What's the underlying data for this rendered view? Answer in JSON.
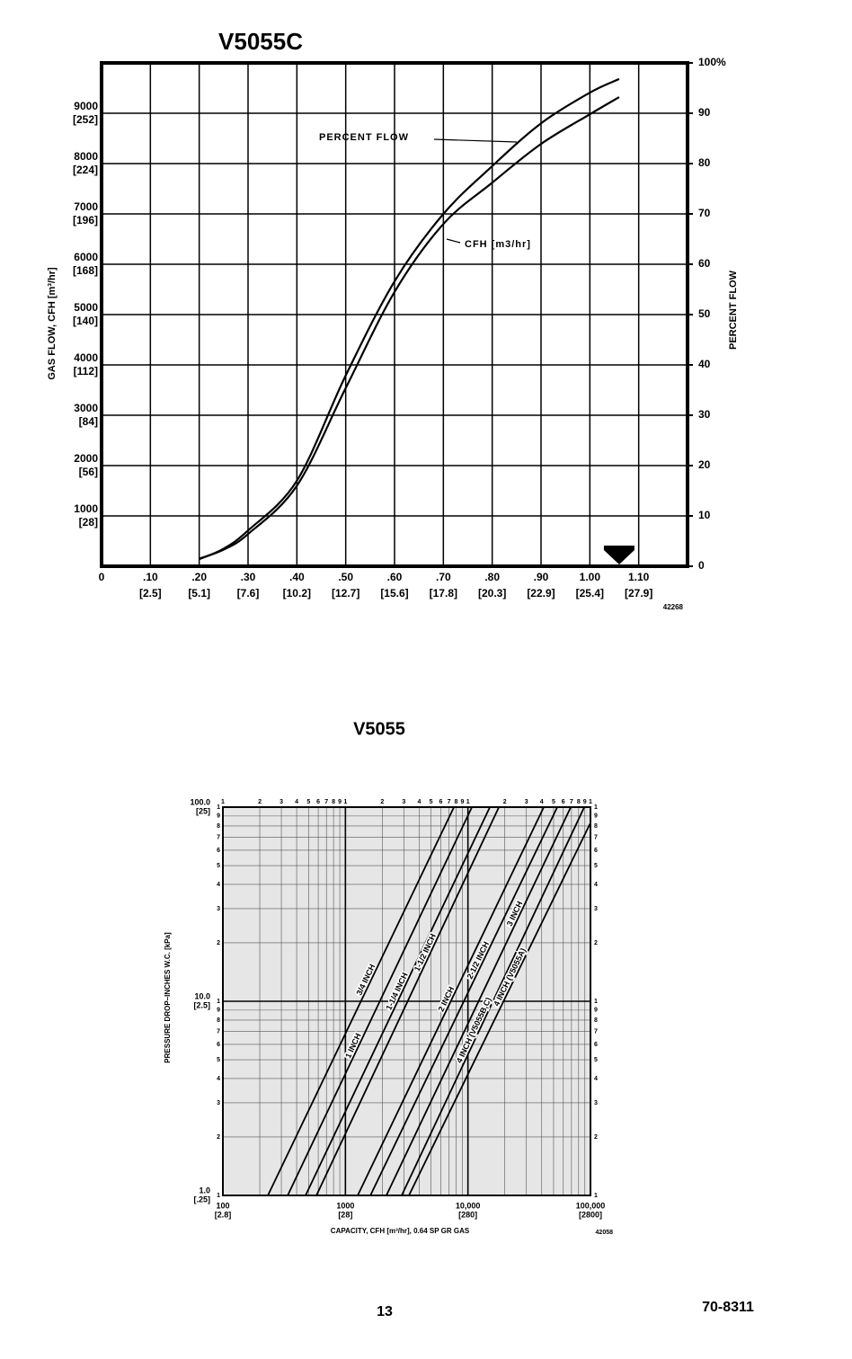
{
  "page_number": "13",
  "document_number": "70-8311",
  "chart_data": [
    {
      "type": "line",
      "title": "V5055C",
      "ylabel": "GAS FLOW, CFH [m³/hr]",
      "y2label": "PERCENT FLOW",
      "code": "42268",
      "xlim": [
        0,
        1.2
      ],
      "ylim": [
        0,
        10000
      ],
      "y2lim": [
        0,
        100
      ],
      "grid": true,
      "xticks": [
        0,
        {
          "value": 0.1,
          "label": ".10"
        },
        {
          "value": 0.2,
          "label": ".20"
        },
        {
          "value": 0.3,
          "label": ".30"
        },
        {
          "value": 0.4,
          "label": ".40"
        },
        {
          "value": 0.5,
          "label": ".50"
        },
        {
          "value": 0.6,
          "label": ".60"
        },
        {
          "value": 0.7,
          "label": ".70"
        },
        {
          "value": 0.8,
          "label": ".80"
        },
        {
          "value": 0.9,
          "label": ".90"
        },
        {
          "value": 1.0,
          "label": "1.00"
        },
        {
          "value": 1.1,
          "label": "1.10"
        }
      ],
      "x_metric_ticks": [
        {
          "value": 0.1,
          "label": "[2.5]"
        },
        {
          "value": 0.2,
          "label": "[5.1]"
        },
        {
          "value": 0.3,
          "label": "[7.6]"
        },
        {
          "value": 0.4,
          "label": "[10.2]"
        },
        {
          "value": 0.5,
          "label": "[12.7]"
        },
        {
          "value": 0.6,
          "label": "[15.6]"
        },
        {
          "value": 0.7,
          "label": "[17.8]"
        },
        {
          "value": 0.8,
          "label": "[20.3]"
        },
        {
          "value": 0.9,
          "label": "[22.9]"
        },
        {
          "value": 1.0,
          "label": "[25.4]"
        },
        {
          "value": 1.1,
          "label": "[27.9]"
        }
      ],
      "yticks": [
        1000,
        2000,
        3000,
        4000,
        5000,
        6000,
        7000,
        8000,
        9000
      ],
      "y_metric_ticks": [
        {
          "value": 1000,
          "label": "[28]"
        },
        {
          "value": 2000,
          "label": "[56]"
        },
        {
          "value": 3000,
          "label": "[84]"
        },
        {
          "value": 4000,
          "label": "[112]"
        },
        {
          "value": 5000,
          "label": "[140]"
        },
        {
          "value": 6000,
          "label": "[168]"
        },
        {
          "value": 7000,
          "label": "[196]"
        },
        {
          "value": 8000,
          "label": "[224]"
        },
        {
          "value": 9000,
          "label": "[252]"
        }
      ],
      "y2ticks": [
        0,
        10,
        20,
        30,
        40,
        50,
        60,
        70,
        80,
        90,
        {
          "value": 100,
          "label": "100%"
        }
      ],
      "marker_x": 1.06,
      "series": [
        {
          "name": "CFH [m3/hr]",
          "color": "#000000",
          "x": [
            0.2,
            0.25,
            0.3,
            0.4,
            0.5,
            0.6,
            0.7,
            0.8,
            0.9,
            1.0,
            1.06
          ],
          "values": [
            150,
            330,
            640,
            1600,
            3540,
            5450,
            6800,
            7620,
            8390,
            8980,
            9320
          ]
        },
        {
          "name": "PERCENT FLOW",
          "color": "#000000",
          "axis": "y2",
          "x": [
            0.2,
            0.25,
            0.3,
            0.4,
            0.5,
            0.6,
            0.7,
            0.8,
            0.9,
            1.0,
            1.06
          ],
          "values": [
            1.4,
            3.5,
            7.1,
            17,
            37.9,
            56.6,
            70,
            79.5,
            88,
            94.1,
            96.8
          ]
        }
      ]
    },
    {
      "type": "line",
      "title": "V5055",
      "xlabel": "CAPACITY, CFH [m³/hr], 0.64 SP GR GAS",
      "ylabel": "PRESSURE DROP–INCHES W.C. [kPa]",
      "code": "42058",
      "log_x": true,
      "log_y": true,
      "xlim": [
        100,
        100000
      ],
      "ylim": [
        1,
        100
      ],
      "grid": true,
      "xticks": [
        100,
        1000,
        {
          "value": 10000,
          "label": "10,000"
        },
        {
          "value": 100000,
          "label": "100,000"
        }
      ],
      "x_metric_ticks": [
        {
          "value": 100,
          "label": "[2.8]"
        },
        {
          "value": 1000,
          "label": "[28]"
        },
        {
          "value": 10000,
          "label": "[280]"
        },
        {
          "value": 100000,
          "label": "[2800]"
        }
      ],
      "yticks": [
        {
          "value": 1,
          "label": "1.0"
        },
        {
          "value": 10,
          "label": "10.0"
        },
        {
          "value": 100,
          "label": "100.0"
        }
      ],
      "y_metric_ticks": [
        {
          "value": 1,
          "label": "[.25]"
        },
        {
          "value": 10,
          "label": "[2.5]"
        },
        {
          "value": 100,
          "label": "[25]"
        }
      ],
      "x_minor_ticks": [
        {
          "value": 100,
          "label": "1"
        },
        {
          "value": 200,
          "label": "2"
        },
        {
          "value": 300,
          "label": "3"
        },
        {
          "value": 400,
          "label": "4"
        },
        {
          "value": 500,
          "label": "5"
        },
        {
          "value": 600,
          "label": "6"
        },
        {
          "value": 700,
          "label": "7"
        },
        {
          "value": 800,
          "label": "8"
        },
        {
          "value": 900,
          "label": "9"
        },
        {
          "value": 1000,
          "label": "1"
        },
        {
          "value": 2000,
          "label": "2"
        },
        {
          "value": 3000,
          "label": "3"
        },
        {
          "value": 4000,
          "label": "4"
        },
        {
          "value": 5000,
          "label": "5"
        },
        {
          "value": 6000,
          "label": "6"
        },
        {
          "value": 7000,
          "label": "7"
        },
        {
          "value": 8000,
          "label": "8"
        },
        {
          "value": 9000,
          "label": "9"
        },
        {
          "value": 10000,
          "label": "1"
        },
        {
          "value": 20000,
          "label": "2"
        },
        {
          "value": 30000,
          "label": "3"
        },
        {
          "value": 40000,
          "label": "4"
        },
        {
          "value": 50000,
          "label": "5"
        },
        {
          "value": 60000,
          "label": "6"
        },
        {
          "value": 70000,
          "label": "7"
        },
        {
          "value": 80000,
          "label": "8"
        },
        {
          "value": 90000,
          "label": "9"
        },
        {
          "value": 100000,
          "label": "1"
        }
      ],
      "y_minor_ticks": [
        1,
        2,
        3,
        4,
        5,
        6,
        7,
        8,
        9,
        {
          "value": 10,
          "label": "1"
        },
        {
          "value": 20,
          "label": "2"
        },
        {
          "value": 30,
          "label": "3"
        },
        {
          "value": 40,
          "label": "4"
        },
        {
          "value": 50,
          "label": "5"
        },
        {
          "value": 60,
          "label": "6"
        },
        {
          "value": 70,
          "label": "7"
        },
        {
          "value": 80,
          "label": "8"
        },
        {
          "value": 90,
          "label": "9"
        },
        {
          "value": 100,
          "label": "1"
        }
      ],
      "series": [
        {
          "name": "3/4 INCH",
          "color": "#000000",
          "x": [
            233,
            7690
          ],
          "values": [
            1,
            100
          ]
        },
        {
          "name": "1 INCH",
          "color": "#000000",
          "x": [
            338,
            10780
          ],
          "values": [
            1,
            100
          ]
        },
        {
          "name": "1-1/4 INCH",
          "color": "#000000",
          "x": [
            473,
            15100
          ],
          "values": [
            1,
            100
          ]
        },
        {
          "name": "1-1/2 INCH",
          "color": "#000000",
          "x": [
            580,
            17900
          ],
          "values": [
            1,
            100
          ]
        },
        {
          "name": "2 INCH",
          "color": "#000000",
          "x": [
            1260,
            41600
          ],
          "values": [
            1,
            100
          ]
        },
        {
          "name": "2-1/2 INCH",
          "color": "#000000",
          "x": [
            1600,
            53600
          ],
          "values": [
            1,
            100
          ]
        },
        {
          "name": "3 INCH",
          "color": "#000000",
          "x": [
            2160,
            69100
          ],
          "values": [
            1,
            100
          ]
        },
        {
          "name": "4 INCH (V5055B,C)",
          "color": "#000000",
          "x": [
            2880,
            89000
          ],
          "values": [
            1,
            100
          ]
        },
        {
          "name": "4 INCH (V5055A)",
          "color": "#000000",
          "x": [
            3300,
            100000
          ],
          "values": [
            1,
            83
          ]
        }
      ]
    }
  ]
}
